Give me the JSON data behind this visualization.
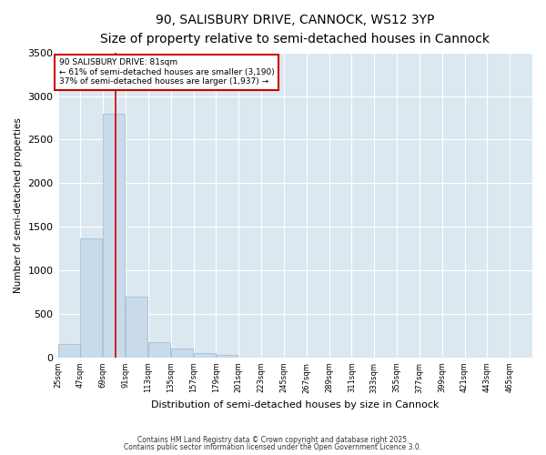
{
  "title_line1": "90, SALISBURY DRIVE, CANNOCK, WS12 3YP",
  "title_line2": "Size of property relative to semi-detached houses in Cannock",
  "xlabel": "Distribution of semi-detached houses by size in Cannock",
  "ylabel": "Number of semi-detached properties",
  "annotation_title": "90 SALISBURY DRIVE: 81sqm",
  "annotation_line2": "← 61% of semi-detached houses are smaller (3,190)",
  "annotation_line3": "37% of semi-detached houses are larger (1,937) →",
  "property_size": 81,
  "bin_labels": [
    "25sqm",
    "47sqm",
    "69sqm",
    "91sqm",
    "113sqm",
    "135sqm",
    "157sqm",
    "179sqm",
    "201sqm",
    "223sqm",
    "245sqm",
    "267sqm",
    "289sqm",
    "311sqm",
    "333sqm",
    "355sqm",
    "377sqm",
    "399sqm",
    "421sqm",
    "443sqm",
    "465sqm"
  ],
  "bin_edges": [
    25,
    47,
    69,
    91,
    113,
    135,
    157,
    179,
    201,
    223,
    245,
    267,
    289,
    311,
    333,
    355,
    377,
    399,
    421,
    443,
    465
  ],
  "bar_values": [
    150,
    1370,
    2800,
    700,
    175,
    100,
    45,
    25,
    0,
    0,
    0,
    0,
    0,
    0,
    0,
    0,
    0,
    0,
    0,
    0
  ],
  "bar_color": "#c9daea",
  "bar_edge_color": "#9ab8cc",
  "line_color": "#cc0000",
  "background_color": "#dce8f0",
  "grid_color": "#ffffff",
  "ylim": [
    0,
    3500
  ],
  "yticks": [
    0,
    500,
    1000,
    1500,
    2000,
    2500,
    3000,
    3500
  ],
  "footer_line1": "Contains HM Land Registry data © Crown copyright and database right 2025.",
  "footer_line2": "Contains public sector information licensed under the Open Government Licence 3.0."
}
